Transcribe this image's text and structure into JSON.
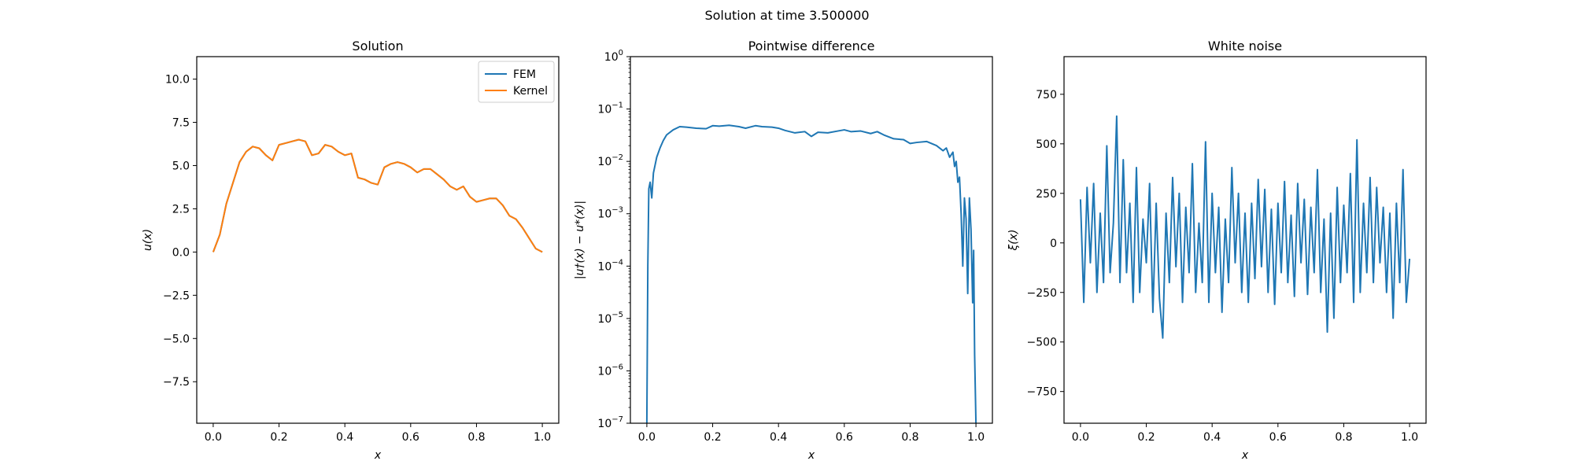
{
  "figure": {
    "suptitle": "Solution at time 3.500000"
  },
  "colors": {
    "series1": "#1f77b4",
    "series2": "#ff7f0e",
    "axes": "#000000",
    "background": "#ffffff"
  },
  "chart_data": [
    {
      "type": "line",
      "title": "Solution",
      "xlabel": "x",
      "ylabel": "u(x)",
      "xlim": [
        -0.05,
        1.05
      ],
      "ylim": [
        -9.9,
        11.3
      ],
      "xticks": [
        0.0,
        0.2,
        0.4,
        0.6,
        0.8,
        1.0
      ],
      "xtick_labels": [
        "0.0",
        "0.2",
        "0.4",
        "0.6",
        "0.8",
        "1.0"
      ],
      "yticks": [
        -7.5,
        -5.0,
        -2.5,
        0.0,
        2.5,
        5.0,
        7.5,
        10.0
      ],
      "ytick_labels": [
        "−7.5",
        "−5.0",
        "−2.5",
        "0.0",
        "2.5",
        "5.0",
        "7.5",
        "10.0"
      ],
      "legend": {
        "position": "top-right",
        "entries": [
          "FEM",
          "Kernel"
        ]
      },
      "grid": false,
      "series": [
        {
          "name": "FEM",
          "x": [
            0.0,
            0.02,
            0.04,
            0.06,
            0.08,
            0.1,
            0.12,
            0.14,
            0.16,
            0.18,
            0.2,
            0.22,
            0.24,
            0.26,
            0.28,
            0.3,
            0.32,
            0.34,
            0.36,
            0.38,
            0.4,
            0.42,
            0.44,
            0.46,
            0.48,
            0.5,
            0.52,
            0.54,
            0.56,
            0.58,
            0.6,
            0.62,
            0.64,
            0.66,
            0.68,
            0.7,
            0.72,
            0.74,
            0.76,
            0.78,
            0.8,
            0.82,
            0.84,
            0.86,
            0.88,
            0.9,
            0.92,
            0.94,
            0.96,
            0.98,
            1.0
          ],
          "y": [
            0.0,
            1.0,
            2.8,
            4.0,
            5.2,
            5.8,
            6.1,
            6.0,
            5.6,
            5.3,
            6.2,
            6.3,
            6.4,
            6.5,
            6.4,
            5.6,
            5.7,
            6.2,
            6.1,
            5.8,
            5.6,
            5.7,
            4.3,
            4.2,
            4.0,
            3.9,
            4.9,
            5.1,
            5.2,
            5.1,
            4.9,
            4.6,
            4.8,
            4.8,
            4.5,
            4.2,
            3.8,
            3.6,
            3.8,
            3.2,
            2.9,
            3.0,
            3.1,
            3.1,
            2.7,
            2.1,
            1.9,
            1.4,
            0.8,
            0.2,
            0.0
          ]
        },
        {
          "name": "Kernel",
          "x": [
            0.0,
            0.02,
            0.04,
            0.06,
            0.08,
            0.1,
            0.12,
            0.14,
            0.16,
            0.18,
            0.2,
            0.22,
            0.24,
            0.26,
            0.28,
            0.3,
            0.32,
            0.34,
            0.36,
            0.38,
            0.4,
            0.42,
            0.44,
            0.46,
            0.48,
            0.5,
            0.52,
            0.54,
            0.56,
            0.58,
            0.6,
            0.62,
            0.64,
            0.66,
            0.68,
            0.7,
            0.72,
            0.74,
            0.76,
            0.78,
            0.8,
            0.82,
            0.84,
            0.86,
            0.88,
            0.9,
            0.92,
            0.94,
            0.96,
            0.98,
            1.0
          ],
          "y": [
            0.0,
            1.0,
            2.8,
            4.0,
            5.2,
            5.8,
            6.1,
            6.0,
            5.6,
            5.3,
            6.2,
            6.3,
            6.4,
            6.5,
            6.4,
            5.6,
            5.7,
            6.2,
            6.1,
            5.8,
            5.6,
            5.7,
            4.3,
            4.2,
            4.0,
            3.9,
            4.9,
            5.1,
            5.2,
            5.1,
            4.9,
            4.6,
            4.8,
            4.8,
            4.5,
            4.2,
            3.8,
            3.6,
            3.8,
            3.2,
            2.9,
            3.0,
            3.1,
            3.1,
            2.7,
            2.1,
            1.9,
            1.4,
            0.8,
            0.2,
            0.0
          ]
        }
      ]
    },
    {
      "type": "line",
      "title": "Pointwise difference",
      "xlabel": "x",
      "ylabel": "|u†(x) − u*(x)|",
      "yscale": "log",
      "xlim": [
        -0.05,
        1.05
      ],
      "ylim": [
        1e-07,
        1
      ],
      "xticks": [
        0.0,
        0.2,
        0.4,
        0.6,
        0.8,
        1.0
      ],
      "xtick_labels": [
        "0.0",
        "0.2",
        "0.4",
        "0.6",
        "0.8",
        "1.0"
      ],
      "yticks": [
        1e-07,
        1e-06,
        1e-05,
        0.0001,
        0.001,
        0.01,
        0.1,
        1
      ],
      "ytick_exponents": [
        "−7",
        "−6",
        "−5",
        "−4",
        "−3",
        "−2",
        "−1",
        "0"
      ],
      "ytick_base": "10",
      "grid": false,
      "series": [
        {
          "x": [
            0.0,
            0.003,
            0.006,
            0.01,
            0.015,
            0.02,
            0.03,
            0.04,
            0.05,
            0.06,
            0.08,
            0.1,
            0.12,
            0.15,
            0.18,
            0.2,
            0.22,
            0.25,
            0.28,
            0.3,
            0.33,
            0.35,
            0.38,
            0.4,
            0.42,
            0.45,
            0.48,
            0.5,
            0.52,
            0.55,
            0.58,
            0.6,
            0.62,
            0.65,
            0.68,
            0.7,
            0.72,
            0.75,
            0.78,
            0.8,
            0.82,
            0.85,
            0.88,
            0.9,
            0.91,
            0.92,
            0.93,
            0.935,
            0.94,
            0.945,
            0.95,
            0.955,
            0.96,
            0.965,
            0.97,
            0.975,
            0.98,
            0.985,
            0.99,
            0.993,
            0.996,
            1.0
          ],
          "y": [
            1e-07,
            0.0001,
            0.003,
            0.004,
            0.002,
            0.006,
            0.012,
            0.018,
            0.025,
            0.032,
            0.04,
            0.046,
            0.045,
            0.043,
            0.042,
            0.048,
            0.047,
            0.049,
            0.046,
            0.043,
            0.048,
            0.046,
            0.045,
            0.043,
            0.039,
            0.035,
            0.037,
            0.03,
            0.036,
            0.035,
            0.038,
            0.04,
            0.037,
            0.038,
            0.034,
            0.037,
            0.032,
            0.027,
            0.026,
            0.022,
            0.023,
            0.024,
            0.02,
            0.016,
            0.018,
            0.012,
            0.015,
            0.008,
            0.01,
            0.004,
            0.005,
            0.001,
            0.0001,
            0.002,
            0.0008,
            3e-05,
            0.002,
            0.0005,
            2e-05,
            0.0002,
            2e-06,
            1e-07
          ]
        }
      ]
    },
    {
      "type": "line",
      "title": "White noise",
      "xlabel": "x",
      "ylabel": "ξ(x)",
      "xlim": [
        -0.05,
        1.05
      ],
      "ylim": [
        -910,
        940
      ],
      "xticks": [
        0.0,
        0.2,
        0.4,
        0.6,
        0.8,
        1.0
      ],
      "xtick_labels": [
        "0.0",
        "0.2",
        "0.4",
        "0.6",
        "0.8",
        "1.0"
      ],
      "yticks": [
        -750,
        -500,
        -250,
        0,
        250,
        500,
        750
      ],
      "ytick_labels": [
        "−750",
        "−500",
        "−250",
        "0",
        "250",
        "500",
        "750"
      ],
      "grid": false,
      "series": [
        {
          "x": [
            0.0,
            0.01,
            0.02,
            0.03,
            0.04,
            0.05,
            0.06,
            0.07,
            0.08,
            0.09,
            0.1,
            0.11,
            0.12,
            0.13,
            0.14,
            0.15,
            0.16,
            0.17,
            0.18,
            0.19,
            0.2,
            0.21,
            0.22,
            0.23,
            0.24,
            0.25,
            0.26,
            0.27,
            0.28,
            0.29,
            0.3,
            0.31,
            0.32,
            0.33,
            0.34,
            0.35,
            0.36,
            0.37,
            0.38,
            0.39,
            0.4,
            0.41,
            0.42,
            0.43,
            0.44,
            0.45,
            0.46,
            0.47,
            0.48,
            0.49,
            0.5,
            0.51,
            0.52,
            0.53,
            0.54,
            0.55,
            0.56,
            0.57,
            0.58,
            0.59,
            0.6,
            0.61,
            0.62,
            0.63,
            0.64,
            0.65,
            0.66,
            0.67,
            0.68,
            0.69,
            0.7,
            0.71,
            0.72,
            0.73,
            0.74,
            0.75,
            0.76,
            0.77,
            0.78,
            0.79,
            0.8,
            0.81,
            0.82,
            0.83,
            0.84,
            0.85,
            0.86,
            0.87,
            0.88,
            0.89,
            0.9,
            0.91,
            0.92,
            0.93,
            0.94,
            0.95,
            0.96,
            0.97,
            0.98,
            0.99,
            1.0
          ],
          "y": [
            220,
            -300,
            280,
            -100,
            300,
            -250,
            150,
            -200,
            490,
            -150,
            100,
            640,
            -200,
            420,
            -150,
            200,
            -300,
            380,
            -250,
            120,
            -100,
            300,
            -350,
            200,
            -280,
            -480,
            150,
            -200,
            330,
            -120,
            250,
            -300,
            180,
            -150,
            400,
            -250,
            100,
            -200,
            510,
            -300,
            250,
            -150,
            180,
            -350,
            120,
            -200,
            380,
            -100,
            250,
            -250,
            150,
            -300,
            200,
            -180,
            320,
            -120,
            270,
            -250,
            170,
            -310,
            200,
            -150,
            310,
            -200,
            140,
            -270,
            300,
            -100,
            220,
            -260,
            180,
            -150,
            370,
            -250,
            120,
            -450,
            150,
            -380,
            280,
            -200,
            190,
            -150,
            350,
            -300,
            520,
            -250,
            200,
            -150,
            330,
            -200,
            280,
            -100,
            180,
            -250,
            150,
            -380,
            200,
            -200,
            370,
            -300,
            -80
          ]
        }
      ]
    }
  ]
}
